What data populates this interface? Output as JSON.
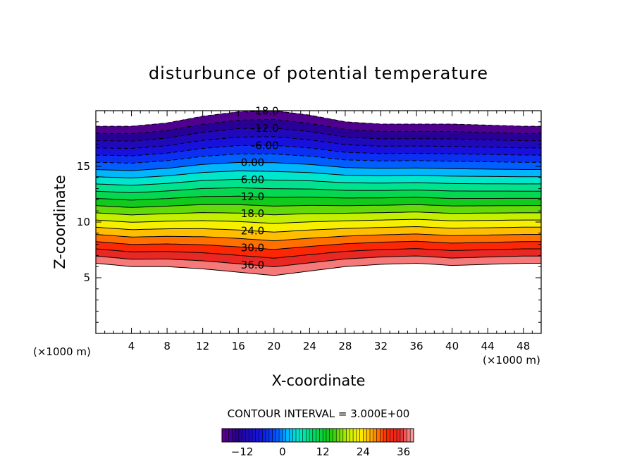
{
  "chart_data": {
    "type": "heatmap",
    "title": "disturbunce of potential temperature",
    "xlabel": "X-coordinate",
    "ylabel": "Z-coordinate",
    "x_unit": "(×1000 m)",
    "z_unit": "(×1000 m)",
    "xlim": [
      0,
      50
    ],
    "ylim": [
      0,
      20
    ],
    "x_ticks": [
      4,
      8,
      12,
      16,
      20,
      24,
      28,
      32,
      36,
      40,
      44,
      48
    ],
    "y_ticks": [
      5,
      10,
      15
    ],
    "contour_interval_text": "CONTOUR INTERVAL = 3.000E+00",
    "contour_interval": 3.0,
    "negative_contours": "dashed",
    "colorbar": {
      "min": -18,
      "max": 39,
      "ticks": [
        -12,
        0,
        12,
        24,
        36
      ],
      "colormap": "rainbow"
    },
    "contour_labels": [
      {
        "text": "-18.0",
        "value": -18,
        "x": 19.0
      },
      {
        "text": "-12.0",
        "value": -12,
        "x": 19.0
      },
      {
        "text": "-6.00",
        "value": -6,
        "x": 19.0
      },
      {
        "text": "0.00",
        "value": 0,
        "x": 17.6
      },
      {
        "text": "6.00",
        "value": 6,
        "x": 17.6
      },
      {
        "text": "12.0",
        "value": 12,
        "x": 17.6
      },
      {
        "text": "18.0",
        "value": 18,
        "x": 17.6
      },
      {
        "text": "24.0",
        "value": 24,
        "x": 17.6
      },
      {
        "text": "30.0",
        "value": 30,
        "x": 17.6
      },
      {
        "text": "36.0",
        "value": 36,
        "x": 17.6
      }
    ],
    "field_boundary": {
      "bottom_z": [
        [
          0,
          6.3
        ],
        [
          4,
          6.0
        ],
        [
          8,
          6.0
        ],
        [
          12,
          5.8
        ],
        [
          16,
          5.5
        ],
        [
          20,
          5.2
        ],
        [
          24,
          5.6
        ],
        [
          28,
          6.0
        ],
        [
          32,
          6.2
        ],
        [
          36,
          6.3
        ],
        [
          40,
          6.1
        ],
        [
          44,
          6.2
        ],
        [
          48,
          6.3
        ],
        [
          50,
          6.3
        ]
      ],
      "top_z": [
        [
          0,
          18.6
        ],
        [
          4,
          18.6
        ],
        [
          8,
          18.9
        ],
        [
          12,
          19.5
        ],
        [
          16,
          19.9
        ],
        [
          20,
          20.0
        ],
        [
          24,
          19.6
        ],
        [
          28,
          19.0
        ],
        [
          32,
          18.8
        ],
        [
          36,
          18.8
        ],
        [
          40,
          18.8
        ],
        [
          44,
          18.7
        ],
        [
          48,
          18.6
        ],
        [
          50,
          18.6
        ]
      ]
    }
  }
}
